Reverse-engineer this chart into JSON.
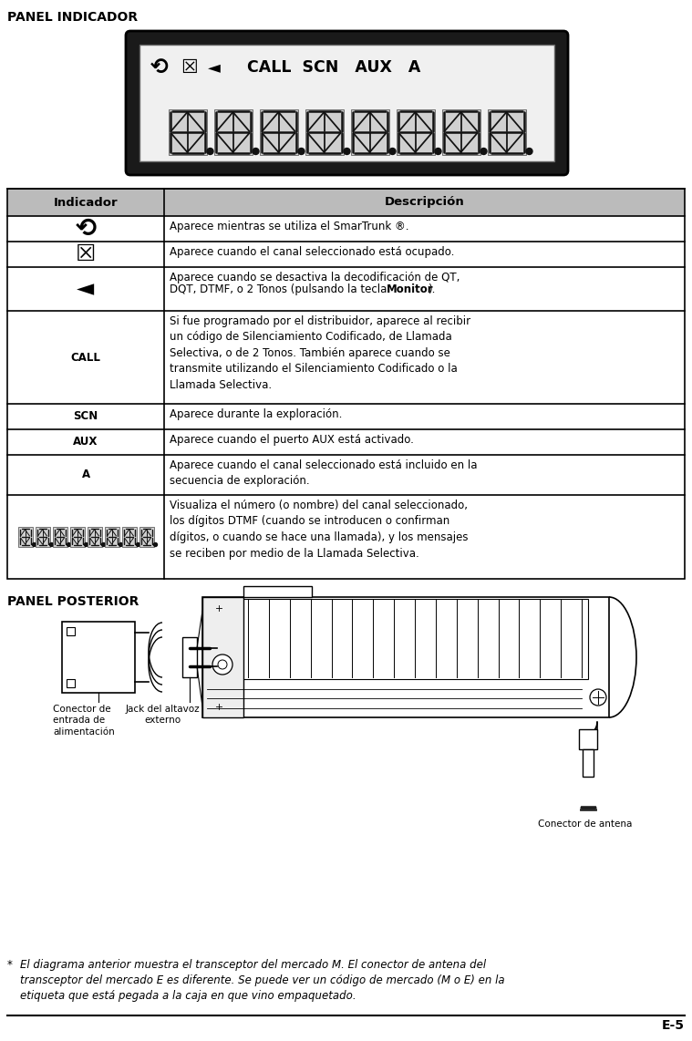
{
  "title_panel_indicador": "PANEL INDICADOR",
  "title_panel_posterior": "PANEL POSTERIOR",
  "table_header": [
    "Indicador",
    "Descripción"
  ],
  "table_rows": [
    {
      "indicator": "smartrunk_icon",
      "description": "Aparece mientras se utiliza el SmarTrunk ®."
    },
    {
      "indicator": "busy_icon",
      "description": "Aparece cuando el canal seleccionado está ocupado."
    },
    {
      "indicator": "monitor_icon",
      "description": "Aparece cuando se desactiva la decodificación de QT,\nDQT, DTMF, o 2 Tonos (pulsando la tecla Monitor)."
    },
    {
      "indicator": "CALL",
      "description": "Si fue programado por el distribuidor, aparece al recibir\nun código de Silenciamiento Codificado, de Llamada\nSelectiva, o de 2 Tonos. También aparece cuando se\ntransmite utilizando el Silenciamiento Codificado o la\nLlamada Selectiva."
    },
    {
      "indicator": "SCN",
      "description": "Aparece durante la exploración."
    },
    {
      "indicator": "AUX",
      "description": "Aparece cuando el puerto AUX está activado."
    },
    {
      "indicator": "A",
      "description": "Aparece cuando el canal seleccionado está incluido en la\nsecuencia de exploración."
    },
    {
      "indicator": "display_icon",
      "description": "Visualiza el número (o nombre) del canal seleccionado,\nlos dígitos DTMF (cuando se introducen o confirman\ndígitos, o cuando se hace una llamada), y los mensajes\nse reciben por medio de la Llamada Selectiva."
    }
  ],
  "footnote_star": "*",
  "footnote_text": "El diagrama anterior muestra el transceptor del mercado M. El conector de antena del\ntransceptor del mercado E es diferente. Se puede ver un código de mercado (M o E) en la\netiqueta que está pegada a la caja en que vino empaquetado.",
  "label_jack": "Jack del altavoz\nexterno",
  "label_conector_entrada": "Conector de\nentrada de\nalimentación",
  "label_conector_antena": "Conector de antena",
  "page_number": "E-5",
  "bg_color": "#ffffff",
  "header_bg": "#bbbbbb",
  "table_border": "#000000",
  "title_fontsize": 10,
  "header_fontsize": 9.5,
  "cell_fontsize": 8.5
}
